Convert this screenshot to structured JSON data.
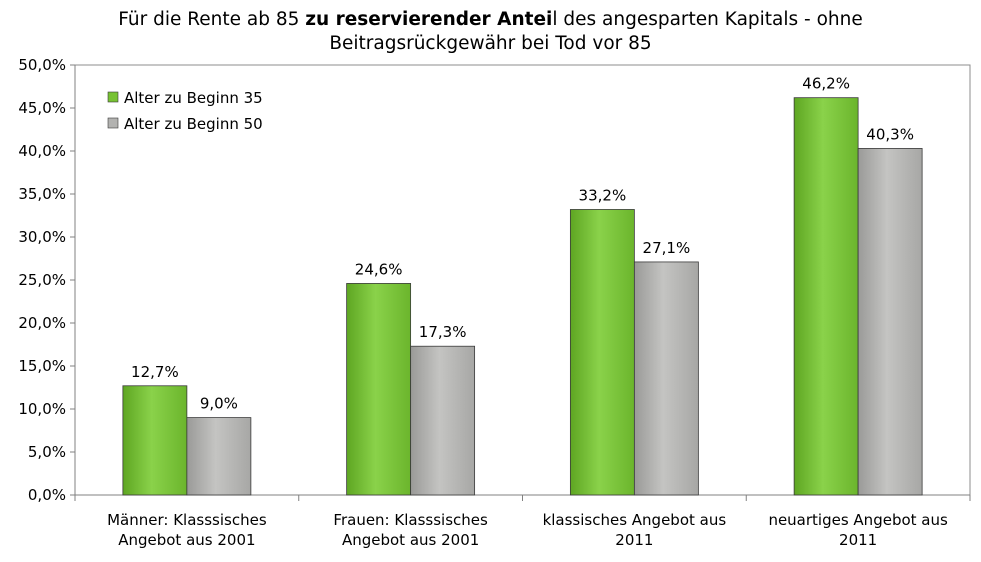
{
  "chart_data": {
    "type": "bar",
    "title": {
      "line1_pre": "Für die Rente ab 85 ",
      "line1_bold": "zu reservierender Antei",
      "line1_post": "l des angesparten Kapitals - ohne",
      "line2": "Beitragsrückgewähr bei Tod vor 85"
    },
    "categories": [
      [
        "Männer: Klasssisches",
        "Angebot aus 2001"
      ],
      [
        "Frauen: Klasssisches",
        "Angebot aus 2001"
      ],
      [
        "klassisches Angebot aus",
        "2011"
      ],
      [
        "neuartiges Angebot aus",
        "2011"
      ]
    ],
    "series": [
      {
        "name": "Alter zu Beginn 35",
        "values": [
          12.7,
          24.6,
          33.2,
          46.2
        ],
        "labels": [
          "12,7%",
          "24,6%",
          "33,2%",
          "46,2%"
        ],
        "color": "#77c233"
      },
      {
        "name": "Alter zu Beginn 50",
        "values": [
          9.0,
          17.3,
          27.1,
          40.3
        ],
        "labels": [
          "9,0%",
          "17,3%",
          "27,1%",
          "40,3%"
        ],
        "color": "#b2b2b0"
      }
    ],
    "ylim": [
      0,
      50
    ],
    "yticks": [
      0,
      5,
      10,
      15,
      20,
      25,
      30,
      35,
      40,
      45,
      50
    ],
    "ytick_labels": [
      "0,0%",
      "5,0%",
      "10,0%",
      "15,0%",
      "20,0%",
      "25,0%",
      "30,0%",
      "35,0%",
      "40,0%",
      "45,0%",
      "50,0%"
    ],
    "grid": false,
    "legend_position": "top-left",
    "xlabel": "",
    "ylabel": ""
  }
}
